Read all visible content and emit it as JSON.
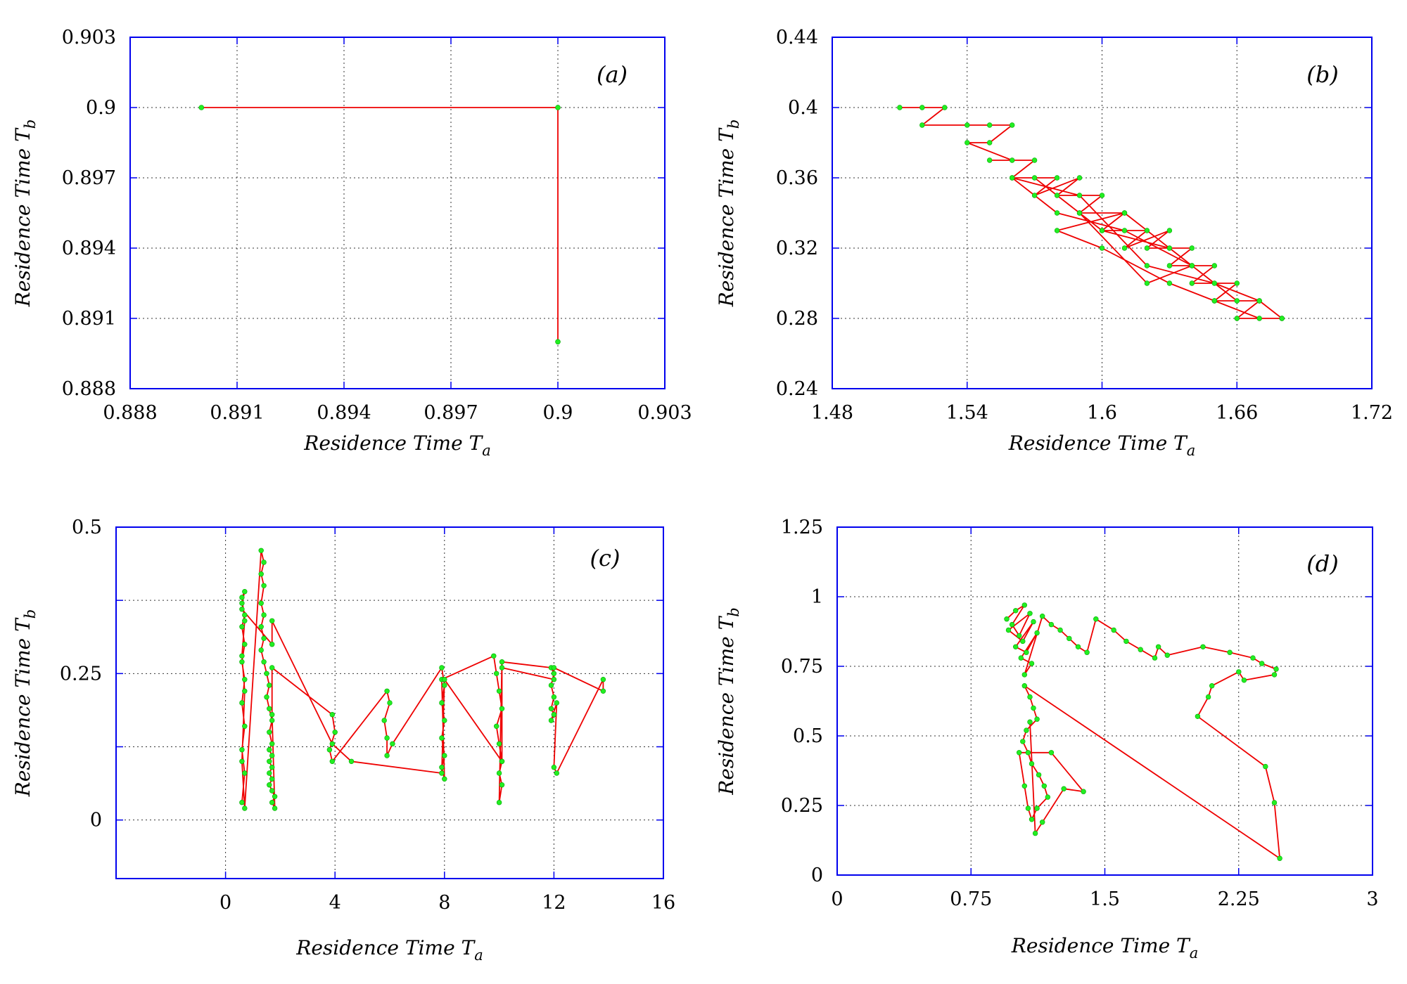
{
  "colors": {
    "frame": "#0000ee",
    "line": "#ee0000",
    "point": "#22ee22"
  },
  "chart_data": [
    {
      "id": "a",
      "type": "scatter",
      "panel_label": "(a)",
      "xlabel": {
        "main": "Residence Time T",
        "sub": "a"
      },
      "ylabel": {
        "main": "Residence Time T",
        "sub": "b"
      },
      "xlim": [
        0.888,
        0.903
      ],
      "ylim": [
        0.888,
        0.903
      ],
      "xticks": [
        0.888,
        0.891,
        0.894,
        0.897,
        0.9,
        0.903
      ],
      "xtick_labels": [
        "0.888",
        "0.891",
        "0.894",
        "0.897",
        "0.9",
        "0.903"
      ],
      "yticks": [
        0.888,
        0.891,
        0.894,
        0.897,
        0.9,
        0.903
      ],
      "ytick_labels": [
        "0.888",
        "0.891",
        "0.894",
        "0.897",
        "0.9",
        "0.903"
      ],
      "grid": true,
      "x": [
        0.89,
        0.9,
        0.9
      ],
      "y": [
        0.9,
        0.9,
        0.89
      ]
    },
    {
      "id": "b",
      "type": "scatter",
      "panel_label": "(b)",
      "xlabel": {
        "main": "Residence Time T",
        "sub": "a"
      },
      "ylabel": {
        "main": "Residence Time T",
        "sub": "b"
      },
      "xlim": [
        1.48,
        1.72
      ],
      "ylim": [
        0.24,
        0.44
      ],
      "xticks": [
        1.48,
        1.54,
        1.6,
        1.66,
        1.72
      ],
      "xtick_labels": [
        "1.48",
        "1.54",
        "1.6",
        "1.66",
        "1.72"
      ],
      "yticks": [
        0.24,
        0.28,
        0.32,
        0.36,
        0.4,
        0.44
      ],
      "ytick_labels": [
        "0.24",
        "0.28",
        "0.32",
        "0.36",
        "0.4",
        "0.44"
      ],
      "grid": true,
      "x": [
        1.51,
        1.52,
        1.53,
        1.52,
        1.54,
        1.55,
        1.56,
        1.55,
        1.54,
        1.56,
        1.55,
        1.57,
        1.56,
        1.58,
        1.57,
        1.59,
        1.58,
        1.6,
        1.59,
        1.61,
        1.6,
        1.62,
        1.61,
        1.63,
        1.62,
        1.64,
        1.63,
        1.65,
        1.64,
        1.66,
        1.65,
        1.67,
        1.66,
        1.68,
        1.67,
        1.65,
        1.63,
        1.6,
        1.58,
        1.61,
        1.64,
        1.62,
        1.59,
        1.57,
        1.6,
        1.63,
        1.66,
        1.64,
        1.61,
        1.58,
        1.56,
        1.59,
        1.62,
        1.65,
        1.67,
        1.68
      ],
      "y": [
        0.4,
        0.4,
        0.4,
        0.39,
        0.39,
        0.39,
        0.39,
        0.38,
        0.38,
        0.37,
        0.37,
        0.37,
        0.36,
        0.36,
        0.35,
        0.36,
        0.35,
        0.35,
        0.34,
        0.34,
        0.33,
        0.33,
        0.32,
        0.33,
        0.32,
        0.32,
        0.31,
        0.31,
        0.3,
        0.3,
        0.29,
        0.29,
        0.28,
        0.28,
        0.28,
        0.29,
        0.3,
        0.32,
        0.33,
        0.34,
        0.31,
        0.3,
        0.34,
        0.36,
        0.33,
        0.32,
        0.29,
        0.31,
        0.33,
        0.34,
        0.36,
        0.35,
        0.31,
        0.3,
        0.29,
        0.28
      ]
    },
    {
      "id": "c",
      "type": "scatter",
      "panel_label": "(c)",
      "xlabel": {
        "main": "Residence Time T",
        "sub": "a"
      },
      "ylabel": {
        "main": "Residence Time T",
        "sub": "b"
      },
      "xlim": [
        -4,
        16
      ],
      "ylim": [
        -0.1,
        0.5
      ],
      "xticks": [
        0,
        4,
        8,
        12,
        16
      ],
      "xtick_labels": [
        "0",
        "4",
        "8",
        "12",
        "16"
      ],
      "yticks": [
        0,
        0.25,
        0.5
      ],
      "ytick_labels": [
        "0",
        "0.25",
        "0.5"
      ],
      "yticks_minor": [
        0.125,
        0.375
      ],
      "grid": true,
      "x": [
        0.6,
        0.7,
        0.6,
        0.7,
        0.6,
        0.7,
        0.6,
        0.7,
        0.6,
        0.7,
        0.6,
        0.7,
        0.6,
        0.7,
        0.6,
        0.7,
        0.6,
        0.7,
        1.3,
        1.4,
        1.3,
        1.4,
        1.3,
        1.4,
        1.3,
        1.4,
        1.3,
        1.4,
        1.5,
        1.6,
        1.5,
        1.6,
        1.7,
        1.6,
        1.7,
        1.6,
        1.7,
        1.6,
        1.7,
        1.6,
        1.7,
        1.6,
        1.7,
        1.8,
        1.7,
        1.8,
        1.7,
        1.7,
        3.9,
        4.0,
        3.8,
        3.9,
        5.9,
        6.0,
        5.8,
        5.9,
        5.9,
        6.1,
        7.9,
        8.0,
        7.9,
        8.0,
        7.9,
        8.0,
        7.9,
        8.0,
        7.9,
        9.8,
        9.9,
        10.0,
        10.1,
        9.9,
        10.0,
        10.1,
        10.0,
        10.1,
        10.0,
        10.1,
        11.9,
        12.0,
        11.9,
        12.0,
        11.9,
        12.0,
        11.9,
        12.1,
        12.0,
        12.1,
        13.8,
        13.8,
        12.0,
        12.0,
        10.1,
        10.1,
        8.0,
        7.9,
        4.6,
        3.9,
        1.7,
        1.7,
        0.6
      ],
      "y": [
        0.03,
        0.08,
        0.12,
        0.16,
        0.2,
        0.24,
        0.27,
        0.3,
        0.33,
        0.35,
        0.37,
        0.39,
        0.38,
        0.34,
        0.28,
        0.22,
        0.1,
        0.02,
        0.46,
        0.44,
        0.42,
        0.4,
        0.37,
        0.35,
        0.33,
        0.31,
        0.29,
        0.27,
        0.25,
        0.23,
        0.21,
        0.19,
        0.17,
        0.15,
        0.13,
        0.12,
        0.11,
        0.1,
        0.09,
        0.08,
        0.07,
        0.06,
        0.05,
        0.04,
        0.03,
        0.02,
        0.18,
        0.26,
        0.18,
        0.15,
        0.12,
        0.1,
        0.22,
        0.2,
        0.17,
        0.14,
        0.11,
        0.13,
        0.26,
        0.23,
        0.2,
        0.17,
        0.14,
        0.11,
        0.09,
        0.07,
        0.24,
        0.28,
        0.25,
        0.22,
        0.19,
        0.16,
        0.13,
        0.1,
        0.08,
        0.06,
        0.03,
        0.27,
        0.26,
        0.25,
        0.23,
        0.21,
        0.19,
        0.18,
        0.17,
        0.2,
        0.09,
        0.08,
        0.24,
        0.22,
        0.26,
        0.24,
        0.26,
        0.1,
        0.24,
        0.08,
        0.1,
        0.13,
        0.34,
        0.3,
        0.36
      ],
      "n_shown_points": 101
    },
    {
      "id": "d",
      "type": "scatter",
      "panel_label": "(d)",
      "xlabel": {
        "main": "Residence Time T",
        "sub": "a"
      },
      "ylabel": {
        "main": "Residence Time T",
        "sub": "b"
      },
      "xlim": [
        0,
        3
      ],
      "ylim": [
        0,
        1.25
      ],
      "xticks": [
        0,
        0.75,
        1.5,
        2.25,
        3
      ],
      "xtick_labels": [
        "0",
        "0.75",
        "1.5",
        "2.25",
        "3"
      ],
      "yticks": [
        0,
        0.25,
        0.5,
        0.75,
        1,
        1.25
      ],
      "ytick_labels": [
        "0",
        "0.25",
        "0.5",
        "0.75",
        "1",
        "1.25"
      ],
      "grid": true,
      "x": [
        0.95,
        1.0,
        1.05,
        0.98,
        1.02,
        1.08,
        0.96,
        1.04,
        1.1,
        1.0,
        1.06,
        1.12,
        1.03,
        1.09,
        1.05,
        1.15,
        1.2,
        1.25,
        1.3,
        1.35,
        1.4,
        1.45,
        1.55,
        1.62,
        1.7,
        1.78,
        1.8,
        1.85,
        2.05,
        2.2,
        2.33,
        2.38,
        2.46,
        2.45,
        2.28,
        2.25,
        2.1,
        2.08,
        2.02,
        2.4,
        2.45,
        2.48,
        1.05,
        1.08,
        1.1,
        1.12,
        1.06,
        1.04,
        1.07,
        1.09,
        1.13,
        1.16,
        1.18,
        1.12,
        1.09,
        1.07,
        1.05,
        1.02,
        1.2,
        1.38,
        1.27,
        1.15,
        1.11,
        1.08
      ],
      "y": [
        0.92,
        0.95,
        0.97,
        0.9,
        0.86,
        0.94,
        0.88,
        0.84,
        0.91,
        0.82,
        0.8,
        0.87,
        0.78,
        0.76,
        0.72,
        0.93,
        0.9,
        0.88,
        0.85,
        0.82,
        0.8,
        0.92,
        0.88,
        0.84,
        0.81,
        0.78,
        0.82,
        0.79,
        0.82,
        0.8,
        0.78,
        0.76,
        0.74,
        0.72,
        0.7,
        0.73,
        0.68,
        0.64,
        0.57,
        0.39,
        0.26,
        0.06,
        0.68,
        0.64,
        0.6,
        0.56,
        0.52,
        0.48,
        0.44,
        0.4,
        0.36,
        0.32,
        0.28,
        0.24,
        0.2,
        0.24,
        0.32,
        0.44,
        0.44,
        0.3,
        0.31,
        0.19,
        0.15,
        0.55
      ],
      "n_shown_points": 64
    }
  ]
}
